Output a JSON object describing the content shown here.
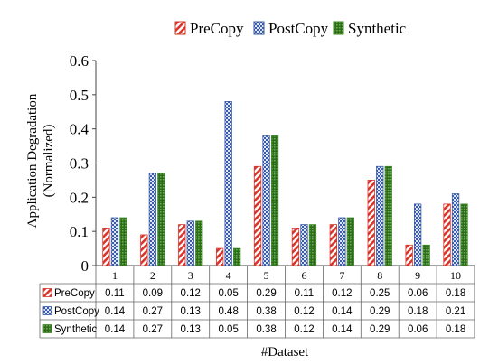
{
  "chart_data": {
    "type": "bar",
    "categories": [
      "1",
      "2",
      "3",
      "4",
      "5",
      "6",
      "7",
      "8",
      "9",
      "10"
    ],
    "series": [
      {
        "name": "PreCopy",
        "values": [
          0.11,
          0.09,
          0.12,
          0.05,
          0.29,
          0.11,
          0.12,
          0.25,
          0.06,
          0.18
        ],
        "color": "#d9352a",
        "pattern": "diagonal-stripes"
      },
      {
        "name": "PostCopy",
        "values": [
          0.14,
          0.27,
          0.13,
          0.48,
          0.38,
          0.12,
          0.14,
          0.29,
          0.18,
          0.21
        ],
        "color": "#3a5ba8",
        "pattern": "checker"
      },
      {
        "name": "Synthetic",
        "values": [
          0.14,
          0.27,
          0.13,
          0.05,
          0.38,
          0.12,
          0.14,
          0.29,
          0.06,
          0.18
        ],
        "color": "#3f8a2a",
        "pattern": "dotted"
      }
    ],
    "ylabel_line1": "Application Degradation",
    "ylabel_line2": "(Normalized)",
    "xlabel": "#Dataset",
    "ylim": [
      0,
      0.6
    ],
    "yticks": [
      "0",
      "0.1",
      "0.2",
      "0.3",
      "0.4",
      "0.5",
      "0.6"
    ],
    "grid": false,
    "legend_position": "top",
    "data_table": true
  }
}
